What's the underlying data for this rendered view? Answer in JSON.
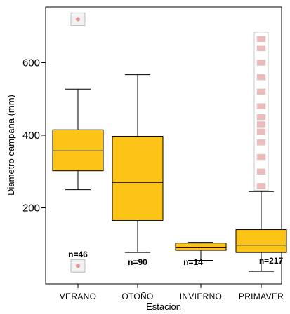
{
  "chart_data": {
    "type": "boxplot",
    "xlabel": "Estacion",
    "ylabel": "Diametro campana (mm)",
    "ylim": [
      0,
      740
    ],
    "yticks": [
      200,
      400,
      600
    ],
    "box_color": "#fcc417",
    "outlier_color": "#d03a3a",
    "categories": [
      "VERANO",
      "OTOÑO",
      "INVIERNO",
      "PRIMAVER"
    ],
    "boxes": [
      {
        "category": "VERANO",
        "min": 250,
        "q1": 302,
        "median": 357,
        "q3": 415,
        "max": 527,
        "n_label": "n=46",
        "outliers": [
          720,
          40
        ]
      },
      {
        "category": "OTOÑO",
        "min": 77,
        "q1": 165,
        "median": 270,
        "q3": 397,
        "max": 567,
        "n_label": "n=90",
        "outliers": []
      },
      {
        "category": "INVIERNO",
        "min": 55,
        "q1": 83,
        "median": 90,
        "q3": 103,
        "max": 105,
        "n_label": "n=14",
        "outliers": []
      },
      {
        "category": "PRIMAVER",
        "min": 25,
        "q1": 77,
        "median": 97,
        "q3": 140,
        "max": 245,
        "n_label": "n=217",
        "outliers": [
          260,
          300,
          340,
          380,
          410,
          430,
          450,
          480,
          520,
          560,
          600,
          640,
          665
        ]
      }
    ]
  }
}
